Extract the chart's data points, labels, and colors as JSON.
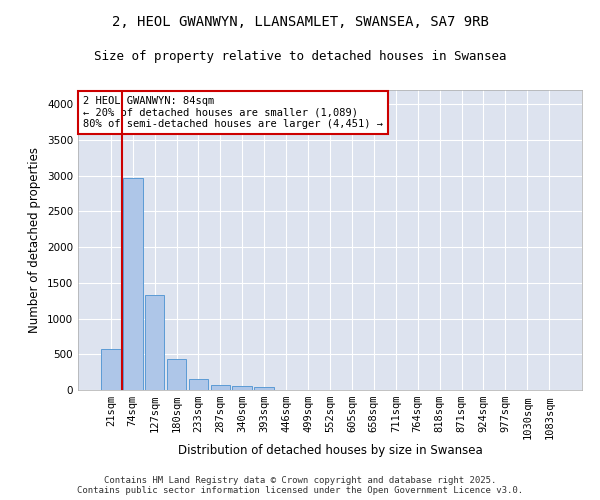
{
  "title": "2, HEOL GWANWYN, LLANSAMLET, SWANSEA, SA7 9RB",
  "subtitle": "Size of property relative to detached houses in Swansea",
  "xlabel": "Distribution of detached houses by size in Swansea",
  "ylabel": "Number of detached properties",
  "categories": [
    "21sqm",
    "74sqm",
    "127sqm",
    "180sqm",
    "233sqm",
    "287sqm",
    "340sqm",
    "393sqm",
    "446sqm",
    "499sqm",
    "552sqm",
    "605sqm",
    "658sqm",
    "711sqm",
    "764sqm",
    "818sqm",
    "871sqm",
    "924sqm",
    "977sqm",
    "1030sqm",
    "1083sqm"
  ],
  "values": [
    580,
    2970,
    1330,
    430,
    150,
    75,
    50,
    40,
    0,
    0,
    0,
    0,
    0,
    0,
    0,
    0,
    0,
    0,
    0,
    0,
    0
  ],
  "bar_color": "#aec6e8",
  "bar_edge_color": "#5b9bd5",
  "vline_x": 0.5,
  "vline_color": "#cc0000",
  "annotation_text": "2 HEOL GWANWYN: 84sqm\n← 20% of detached houses are smaller (1,089)\n80% of semi-detached houses are larger (4,451) →",
  "annotation_box_color": "#cc0000",
  "annotation_bg": "white",
  "ylim": [
    0,
    4200
  ],
  "yticks": [
    0,
    500,
    1000,
    1500,
    2000,
    2500,
    3000,
    3500,
    4000
  ],
  "bg_color": "#dde3ef",
  "grid_color": "white",
  "footer": "Contains HM Land Registry data © Crown copyright and database right 2025.\nContains public sector information licensed under the Open Government Licence v3.0.",
  "title_fontsize": 10,
  "subtitle_fontsize": 9,
  "xlabel_fontsize": 8.5,
  "ylabel_fontsize": 8.5,
  "tick_fontsize": 7.5,
  "footer_fontsize": 6.5,
  "annotation_fontsize": 7.5
}
